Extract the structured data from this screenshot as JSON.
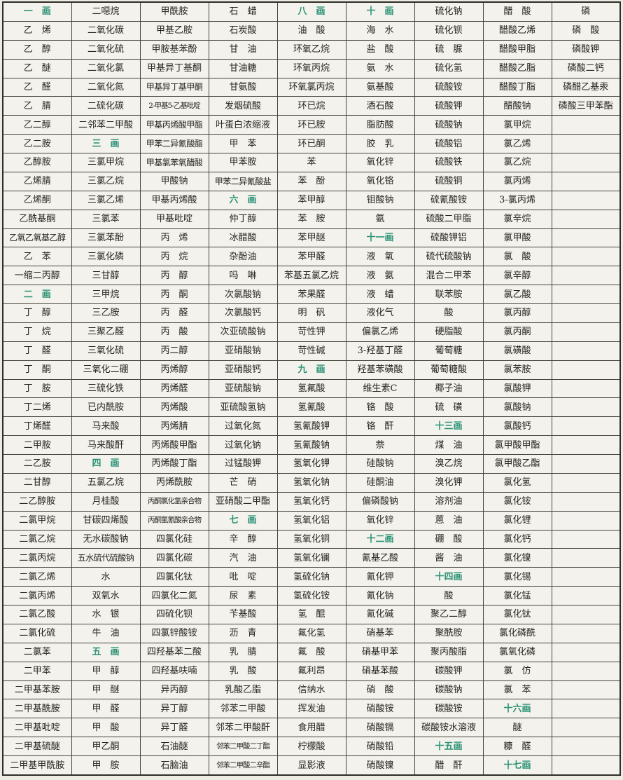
{
  "table": {
    "columns": 9,
    "colors": {
      "section_header_green": "#2d9377",
      "text_ink": "#26261f",
      "grid_line": "#45453c",
      "paper": "#f3f2ec"
    },
    "stroke_section_headers": [
      "一　画",
      "二　画",
      "三　画",
      "四　画",
      "五　画",
      "六　画",
      "七　画",
      "八　画",
      "九　画",
      "十　画",
      "十一画",
      "十二画",
      "十三画",
      "十四画",
      "十五画",
      "十六画",
      "十七画"
    ],
    "rows": [
      [
        "一　画",
        "二噁烷",
        "甲酰胺",
        "石　蜡",
        "八　画",
        "十　画",
        "硫化钠",
        "醋　酸",
        "磷"
      ],
      [
        "乙　烯",
        "二氧化碳",
        "甲基乙胺",
        "石炭酸",
        "油　酸",
        "海　水",
        "硫化钡",
        "醋酸乙烯",
        "磷　酸"
      ],
      [
        "乙　醇",
        "二氧化硫",
        "甲胺基苯酚",
        "甘　油",
        "环氧乙烷",
        "盐　酸",
        "硫　脲",
        "醋酸甲脂",
        "磷酸钾"
      ],
      [
        "乙　醚",
        "二氧化氯",
        "甲基异丁基酮",
        "甘油糖",
        "环氧丙烷",
        "氨　水",
        "硫化氢",
        "醋酸乙脂",
        "磷酸二钙"
      ],
      [
        "乙　醛",
        "二氧化氮",
        "甲基异丁基甲酮",
        "甘氨酸",
        "环氧氯丙烷",
        "氨基酸",
        "硫酸铵",
        "醋酸丁脂",
        "磷醋乙基汞"
      ],
      [
        "乙　腈",
        "二硫化碳",
        "2-甲基5-乙基吡啶",
        "发烟硫酸",
        "环已烷",
        "酒石酸",
        "硫酸钾",
        "醋酸钠",
        "磷酸三甲苯酯"
      ],
      [
        "乙二醇",
        "二邻苯二甲酸",
        "甲基丙烯酸甲酯",
        "叶蛋白浓缩液",
        "环已胺",
        "脂肪酸",
        "硫酸钠",
        "氯甲烷",
        ""
      ],
      [
        "乙二胺",
        "三　画",
        "甲苯二异氰酸酯",
        "甲　苯",
        "环已酮",
        "胶　乳",
        "硫酸铝",
        "氯乙烯",
        ""
      ],
      [
        "乙醇胺",
        "三氯甲烷",
        "甲基氯苯氧醋酸",
        "甲苯胺",
        "苯",
        "氧化锌",
        "硫酸铁",
        "氯乙烷",
        ""
      ],
      [
        "乙烯腈",
        "三氯乙烷",
        "甲酸钠",
        "甲苯二异氰酸盐",
        "苯　酚",
        "氧化铬",
        "硫酸铜",
        "氯丙烯",
        ""
      ],
      [
        "乙烯酮",
        "三氯乙烯",
        "甲基丙烯酸",
        "六　画",
        "苯甲醇",
        "钼酸钠",
        "硫氰酸铵",
        "3-氯丙烯",
        ""
      ],
      [
        "乙酰基酮",
        "三氯苯",
        "甲基吡啶",
        "仲丁醇",
        "苯　胺",
        "氨",
        "硫酸二甲脂",
        "氯辛烷",
        ""
      ],
      [
        "乙氧乙氧基乙醇",
        "三氯苯酚",
        "丙　烯",
        "冰醋酸",
        "苯甲醚",
        "十一画",
        "硫酸钾铝",
        "氯甲酸",
        ""
      ],
      [
        "乙　苯",
        "三氯化磷",
        "丙　烷",
        "杂酚油",
        "苯甲醛",
        "液　氧",
        "硫代硫酸钠",
        "氯　酸",
        ""
      ],
      [
        "一缩二丙醇",
        "三甘醇",
        "丙　醇",
        "吗　啉",
        "苯基五氯乙烷",
        "液　氨",
        "混合二甲苯",
        "氯辛醇",
        ""
      ],
      [
        "二　画",
        "三甲烷",
        "丙　酮",
        "次氯酸钠",
        "苯果醛",
        "液　蜡",
        "联苯胺",
        "氯乙酸",
        ""
      ],
      [
        "丁　醇",
        "三乙胺",
        "丙　醛",
        "次氯酸钙",
        "明　矾",
        "液化气",
        "酸",
        "氯丙醇",
        ""
      ],
      [
        "丁　烷",
        "三聚乙醛",
        "丙　酸",
        "次亚硫酸钠",
        "苛性钾",
        "偏氯乙烯",
        "硬脂酸",
        "氯丙酮",
        ""
      ],
      [
        "丁　醛",
        "三氧化硫",
        "丙二醇",
        "亚硝酸钠",
        "苛性碱",
        "3-羟基丁醛",
        "葡萄糖",
        "氯磺酸",
        ""
      ],
      [
        "丁　酮",
        "三氧化二硼",
        "丙烯醇",
        "亚硝酸钙",
        "九　画",
        "羟基苯磺酸",
        "葡萄糖酸",
        "氯苯胺",
        ""
      ],
      [
        "丁　胺",
        "三硫化铁",
        "丙烯醛",
        "亚硫酸钠",
        "氢氟酸",
        "维生素C",
        "椰子油",
        "氯酸钾",
        ""
      ],
      [
        "丁二烯",
        "已内酰胺",
        "丙烯酸",
        "亚硫酸氢钠",
        "氢氰酸",
        "铬　酸",
        "硫　磺",
        "氯酸钠",
        ""
      ],
      [
        "丁烯醛",
        "马来酸",
        "丙烯腈",
        "过氧化氮",
        "氢氰酸钾",
        "铬　酐",
        "十三画",
        "氯酸钙",
        ""
      ],
      [
        "二甲胺",
        "马来酸酐",
        "丙烯酸甲酯",
        "过氧化钠",
        "氢氰酸钠",
        "萘",
        "煤　油",
        "氯甲酸甲酯",
        ""
      ],
      [
        "二乙胺",
        "四　画",
        "丙烯酸丁酯",
        "过锰酸钾",
        "氢氧化钾",
        "硅酸钠",
        "溴乙烷",
        "氯甲酸乙酯",
        ""
      ],
      [
        "二甘醇",
        "五氯乙烷",
        "丙烯酰胺",
        "芒　硝",
        "氢氧化钠",
        "硅酮油",
        "溴化钾",
        "氯化氢",
        ""
      ],
      [
        "二乙醇胺",
        "月桂酸",
        "丙酮氯化氢亲合物",
        "亚硝酸二甲酯",
        "氢氧化钙",
        "偏磷酸钠",
        "溶剂油",
        "氯化铵",
        ""
      ],
      [
        "二氯甲烷",
        "甘碳四烯酸",
        "丙酮氢氰酸亲合物",
        "七　画",
        "氢氧化铝",
        "氧化锌",
        "蒽　油",
        "氯化锂",
        ""
      ],
      [
        "二氯乙烷",
        "无水碳酸钠",
        "四氯化硅",
        "辛　醇",
        "氢氧化铜",
        "十二画",
        "硼　酸",
        "氯化钙",
        ""
      ],
      [
        "二氯丙烷",
        "五水硫代硫酸钠",
        "四氯化碳",
        "汽　油",
        "氢氧化镧",
        "氰基乙酸",
        "酱　油",
        "氯化镍",
        ""
      ],
      [
        "二氯乙烯",
        "水",
        "四氯化钛",
        "吡　啶",
        "氢硫化钠",
        "氰化钾",
        "十四画",
        "氯化锡",
        ""
      ],
      [
        "二氯丙烯",
        "双氧水",
        "四氯化二氮",
        "尿　素",
        "氢硫化铵",
        "氰化钠",
        "酸",
        "氯化锰",
        ""
      ],
      [
        "二氯乙酸",
        "水　银",
        "四硫化钡",
        "苄基酸",
        "氢　醌",
        "氰化碱",
        "聚乙二醇",
        "氯化钛",
        ""
      ],
      [
        "二氯化硫",
        "牛　油",
        "四氯锌酸铵",
        "沥　青",
        "氟化氢",
        "硝基苯",
        "聚酰胺",
        "氯化磷酰",
        ""
      ],
      [
        "二氯苯",
        "五　画",
        "四羟基苯二酸",
        "乳　腈",
        "氟　酸",
        "硝基甲苯",
        "聚丙酸脂",
        "氯氧化磷",
        ""
      ],
      [
        "二甲苯",
        "甲　醇",
        "四羟基呋喃",
        "乳　酸",
        "氟利昂",
        "硝基苯酸",
        "碳酸钾",
        "氯　仿",
        ""
      ],
      [
        "二甲基苯胺",
        "甲　醚",
        "异丙醇",
        "乳酸乙脂",
        "信纳水",
        "硝　酸",
        "碳酸钠",
        "氯　苯",
        ""
      ],
      [
        "二甲基酰胺",
        "甲　醛",
        "异丁醇",
        "邻苯二甲酸",
        "挥发油",
        "硝酸铵",
        "碳酸铵",
        "十六画",
        ""
      ],
      [
        "二甲基吡啶",
        "甲　酸",
        "异丁醛",
        "邻苯二甲酸酐",
        "食用醋",
        "硝酸镉",
        "碳酸铵水溶液",
        "醚",
        ""
      ],
      [
        "二甲基硫醚",
        "甲乙酮",
        "石油醚",
        "邻苯二甲酸二丁酯",
        "柠檬酸",
        "硝酸铅",
        "十五画",
        "糠　醛",
        ""
      ],
      [
        "二甲基甲酰胺",
        "甲　胺",
        "石脑油",
        "邻苯二甲酸二辛酯",
        "显影液",
        "硝酸镍",
        "醋　酐",
        "十七画",
        ""
      ]
    ]
  }
}
